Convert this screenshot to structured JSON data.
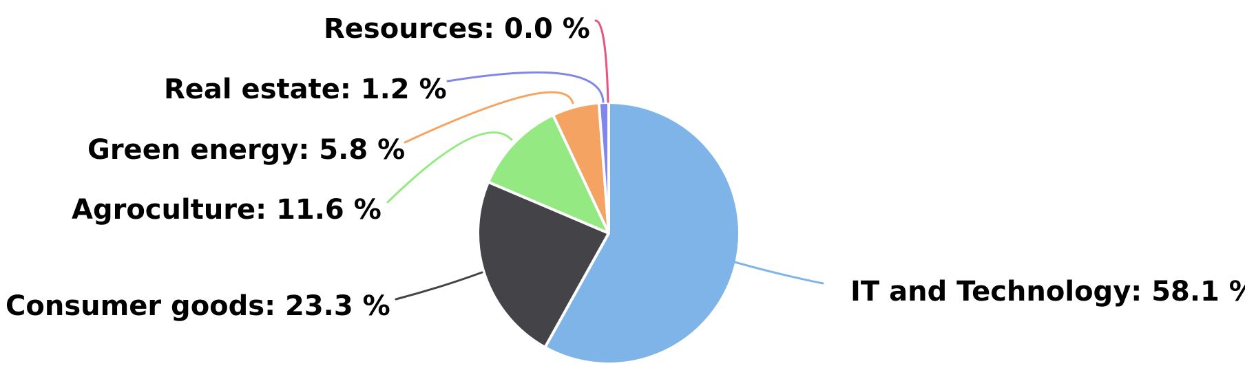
{
  "chart_data": {
    "type": "pie",
    "title": "",
    "label_suffix": "%",
    "slices": [
      {
        "name": "IT and Technology",
        "value": 58.1,
        "color": "#7fb4e8"
      },
      {
        "name": "Consumer goods",
        "value": 23.3,
        "color": "#444348"
      },
      {
        "name": "Agroculture",
        "value": 11.6,
        "color": "#95e982"
      },
      {
        "name": "Green energy",
        "value": 5.8,
        "color": "#f4a362"
      },
      {
        "name": "Real estate",
        "value": 1.2,
        "color": "#8087e8"
      },
      {
        "name": "Resources",
        "value": 0.0,
        "color": "#e5557c"
      }
    ],
    "label_texts": [
      "IT and Technology: 58.1 %",
      "Consumer goods: 23.3 %",
      "Agroculture: 11.6 %",
      "Green energy: 5.8 %",
      "Real estate: 1.2 %",
      "Resources: 0.0 %"
    ],
    "legend": false
  }
}
